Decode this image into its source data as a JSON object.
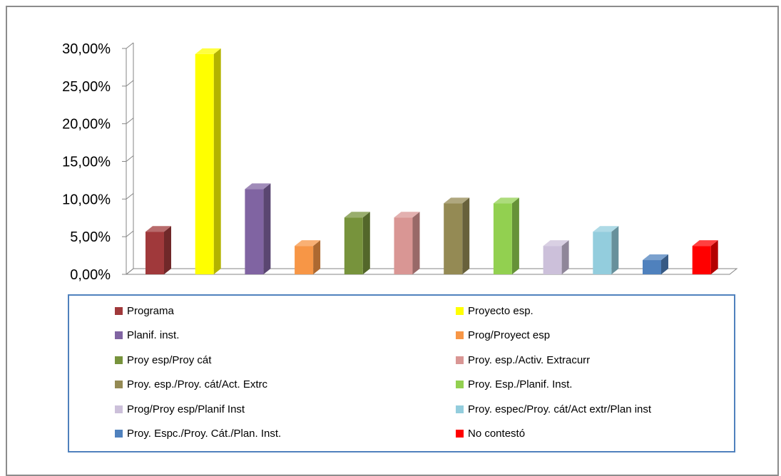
{
  "chart_data": {
    "type": "bar",
    "three_d": true,
    "title": "",
    "xlabel": "",
    "ylabel": "",
    "ylim": [
      0,
      30
    ],
    "yticks": [
      0,
      5,
      10,
      15,
      20,
      25,
      30
    ],
    "ytick_labels": [
      "0,00%",
      "5,00%",
      "10,00%",
      "15,00%",
      "20,00%",
      "25,00%",
      "30,00%"
    ],
    "grid": false,
    "legend_position": "bottom",
    "categories": [
      "Programa",
      "Proyecto esp.",
      "Planif. inst.",
      "Prog/Proyect esp",
      "Proy esp/Proy cát",
      "Proy. esp./Activ. Extracurr",
      "Proy. esp./Proy. cát/Act. Extrc",
      "Proy. Esp./Planif. Inst.",
      "Prog/Proy esp/Planif Inst",
      "Proy. espec/Proy. cát/Act extr/Plan inst",
      "Proy. Espc./Proy. Cát./Plan. Inst.",
      "No contestó"
    ],
    "values": [
      5.66,
      29.25,
      11.32,
      3.77,
      7.55,
      7.55,
      9.43,
      9.43,
      3.77,
      5.66,
      1.89,
      3.77
    ],
    "colors": [
      "#a0393b",
      "#ffff00",
      "#8064a2",
      "#f79646",
      "#77933c",
      "#d99694",
      "#948a54",
      "#92d050",
      "#ccc0da",
      "#93cddd",
      "#4f81bd",
      "#ff0000"
    ]
  }
}
